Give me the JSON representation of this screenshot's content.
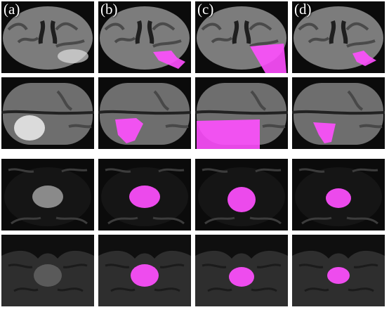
{
  "columns": [
    {
      "key": "a",
      "label": "(a)"
    },
    {
      "key": "b",
      "label": "(b)"
    },
    {
      "key": "c",
      "label": "(c)"
    },
    {
      "key": "d",
      "label": "(d)"
    }
  ],
  "rows": [
    {
      "key": "brain-axial-1"
    },
    {
      "key": "brain-axial-2"
    },
    {
      "key": "pelvis-axial-1"
    },
    {
      "key": "pelvis-axial-2"
    }
  ],
  "colors": {
    "overlay_magenta": "#ff4fff",
    "panel_bg": "#000000",
    "label_text": "#ffffff"
  }
}
